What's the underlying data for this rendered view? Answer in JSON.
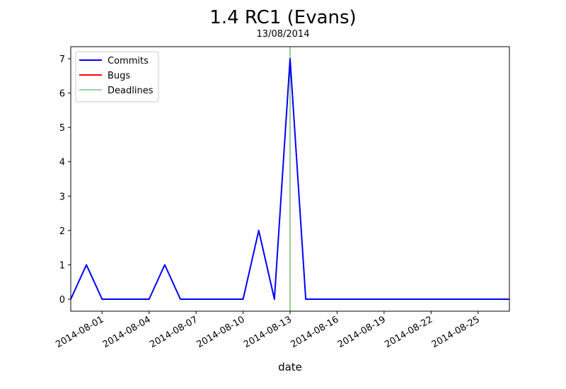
{
  "chart_data": {
    "type": "line",
    "title": "1.4 RC1 (Evans)",
    "subtitle": "13/08/2014",
    "xlabel": "date",
    "ylabel": "",
    "x_range": [
      "2014-07-30",
      "2014-08-27"
    ],
    "ylim": [
      -0.35,
      7.35
    ],
    "x_ticks": [
      "2014-08-01",
      "2014-08-04",
      "2014-08-07",
      "2014-08-10",
      "2014-08-13",
      "2014-08-16",
      "2014-08-19",
      "2014-08-22",
      "2014-08-25"
    ],
    "y_ticks": [
      0,
      1,
      2,
      3,
      4,
      5,
      6,
      7
    ],
    "grid": false,
    "legend_position": "top-left",
    "series": [
      {
        "name": "Commits",
        "color": "#0000ff",
        "x": [
          "2014-07-30",
          "2014-07-31",
          "2014-08-01",
          "2014-08-02",
          "2014-08-03",
          "2014-08-04",
          "2014-08-05",
          "2014-08-06",
          "2014-08-07",
          "2014-08-08",
          "2014-08-09",
          "2014-08-10",
          "2014-08-11",
          "2014-08-12",
          "2014-08-13",
          "2014-08-14",
          "2014-08-15",
          "2014-08-16",
          "2014-08-17",
          "2014-08-18",
          "2014-08-19",
          "2014-08-20",
          "2014-08-21",
          "2014-08-22",
          "2014-08-23",
          "2014-08-24",
          "2014-08-25",
          "2014-08-26",
          "2014-08-27"
        ],
        "values": [
          0,
          1,
          0,
          0,
          0,
          0,
          1,
          0,
          0,
          0,
          0,
          0,
          2,
          0,
          7,
          0,
          0,
          0,
          0,
          0,
          0,
          0,
          0,
          0,
          0,
          0,
          0,
          0,
          0
        ]
      },
      {
        "name": "Bugs",
        "color": "#ff0000",
        "x": [],
        "values": []
      }
    ],
    "deadlines": {
      "name": "Deadlines",
      "color": "#008000",
      "dates": [
        "2014-08-13"
      ]
    }
  }
}
